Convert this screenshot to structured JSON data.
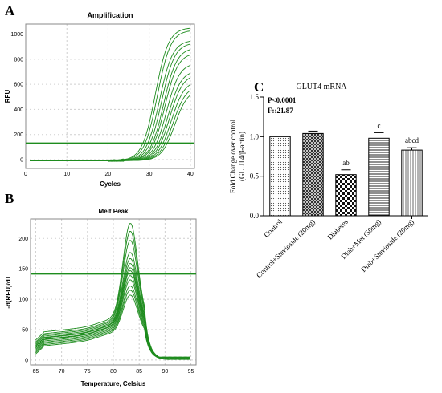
{
  "figure": {
    "panel_labels": [
      "A",
      "B",
      "C"
    ]
  },
  "chart_data": [
    {
      "type": "line",
      "panel": "A",
      "title": "Amplification",
      "xlabel": "Cycles",
      "ylabel": "RFU",
      "xlim": [
        0,
        41
      ],
      "ylim": [
        -70,
        1080
      ],
      "xticks": [
        0,
        10,
        20,
        30,
        40
      ],
      "yticks": [
        0,
        200,
        400,
        600,
        800,
        1000
      ],
      "grid": true,
      "threshold": 130,
      "line_color": "#1e8c1e",
      "series": [
        {
          "midpoint": 31.5,
          "plateau": 1060
        },
        {
          "midpoint": 32.0,
          "plateau": 1040
        },
        {
          "midpoint": 32.5,
          "plateau": 960
        },
        {
          "midpoint": 33.0,
          "plateau": 940
        },
        {
          "midpoint": 33.5,
          "plateau": 900
        },
        {
          "midpoint": 33.8,
          "plateau": 860
        },
        {
          "midpoint": 34.2,
          "plateau": 780
        },
        {
          "midpoint": 34.6,
          "plateau": 720
        },
        {
          "midpoint": 35.0,
          "plateau": 690
        },
        {
          "midpoint": 35.4,
          "plateau": 640
        },
        {
          "midpoint": 35.8,
          "plateau": 600
        },
        {
          "midpoint": 36.2,
          "plateau": 570
        }
      ]
    },
    {
      "type": "line",
      "panel": "B",
      "title": "Melt Peak",
      "xlabel": "Temperature, Celsius",
      "ylabel": "-d(RFU)/dT",
      "xlim": [
        64,
        96
      ],
      "ylim": [
        -8,
        232
      ],
      "xticks": [
        65,
        70,
        75,
        80,
        85,
        90,
        95
      ],
      "yticks": [
        0,
        50,
        100,
        150,
        200
      ],
      "grid": true,
      "threshold": 142,
      "line_color": "#1e8c1e",
      "series": [
        {
          "base": 45,
          "peak": 218
        },
        {
          "base": 42,
          "peak": 205
        },
        {
          "base": 40,
          "peak": 190
        },
        {
          "base": 38,
          "peak": 170
        },
        {
          "base": 36,
          "peak": 160
        },
        {
          "base": 35,
          "peak": 152
        },
        {
          "base": 33,
          "peak": 145
        },
        {
          "base": 32,
          "peak": 140
        },
        {
          "base": 30,
          "peak": 132
        },
        {
          "base": 28,
          "peak": 125
        },
        {
          "base": 26,
          "peak": 115
        },
        {
          "base": 24,
          "peak": 108
        },
        {
          "base": 22,
          "peak": 100
        }
      ]
    },
    {
      "type": "bar",
      "panel": "C",
      "title": "GLUT4  mRNA",
      "ylabel_lines": [
        "Fold Change over control",
        "(GLUT4/β-actin)"
      ],
      "ylim": [
        0,
        1.5
      ],
      "yticks": [
        "0.0",
        "0.5",
        "1.0",
        "1.5"
      ],
      "stats": [
        "P<0.0001",
        "F::21.87"
      ],
      "categories": [
        "Control",
        "Control+Stevioside (20mg)",
        "Diabetes",
        "Diab+Met (50mg)",
        "Diab+Stevioside (20mg)"
      ],
      "values": [
        1.0,
        1.04,
        0.52,
        0.98,
        0.83
      ],
      "errors": [
        0.0,
        0.03,
        0.06,
        0.07,
        0.03
      ],
      "annotations": [
        "",
        "",
        "ab",
        "c",
        "abcd"
      ],
      "patterns": [
        "dots",
        "crosshatch",
        "checker",
        "hlines",
        "vlines"
      ]
    }
  ]
}
